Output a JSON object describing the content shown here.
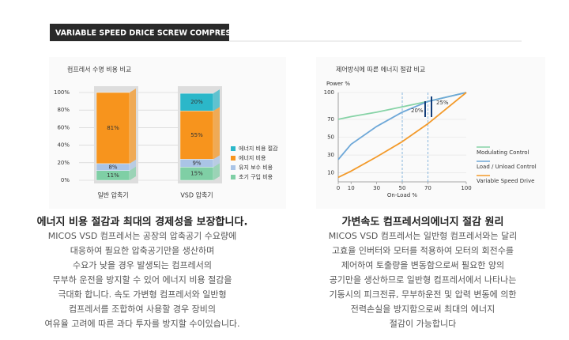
{
  "header": {
    "title": "VARIABLE SPEED DRICE SCREW COMPRESSOR"
  },
  "chart_data": [
    {
      "type": "stacked_bar",
      "title": "컴프레서 수명 비용 비교",
      "categories": [
        "일반 압축기",
        "VSD 압축기"
      ],
      "series": [
        {
          "name": "에너지 비용 절감",
          "color": "#2bb7c9",
          "values": [
            null,
            20
          ],
          "value_labels": [
            null,
            "20%"
          ]
        },
        {
          "name": "에너지 비용",
          "color": "#f7941d",
          "values": [
            81,
            55
          ],
          "value_labels": [
            "81%",
            "55%"
          ]
        },
        {
          "name": "유지 보수 비용",
          "color": "#aac4e6",
          "values": [
            8,
            9
          ],
          "value_labels": [
            "8%",
            "9%"
          ]
        },
        {
          "name": "초기 구입 비용",
          "color": "#7fcfa5",
          "values": [
            11,
            15
          ],
          "value_labels": [
            "11%",
            "15%"
          ]
        }
      ],
      "ylim": [
        0,
        100
      ],
      "yticks": [
        {
          "value": 0,
          "label": "0%"
        },
        {
          "value": 20,
          "label": "20%"
        },
        {
          "value": 40,
          "label": "40%"
        },
        {
          "value": 60,
          "label": "60%"
        },
        {
          "value": 80,
          "label": "80%"
        },
        {
          "value": 100,
          "label": "100%"
        }
      ],
      "grid": true
    },
    {
      "type": "line",
      "title": "제어방식에 따른 에너지 절감 비교",
      "ylabel": "Power %",
      "xlabel": "On-Load %",
      "x": [
        0,
        10,
        30,
        50,
        70,
        100
      ],
      "series": [
        {
          "name": "Modulating Control",
          "color": "#86d3a6",
          "values": [
            70,
            73,
            78,
            84,
            90,
            100
          ]
        },
        {
          "name": "Load / Unload Control",
          "color": "#6ea8d8",
          "values": [
            25,
            42,
            62,
            78,
            90,
            100
          ]
        },
        {
          "name": "Variable Speed Drive",
          "color": "#f39a2a",
          "values": [
            5,
            12,
            28,
            45,
            65,
            100
          ]
        }
      ],
      "xlim": [
        0,
        100
      ],
      "ylim": [
        0,
        100
      ],
      "xticks": [
        0,
        10,
        30,
        50,
        70,
        100
      ],
      "yticks": [
        10,
        30,
        50,
        70,
        100
      ],
      "reference_x": [
        50,
        70
      ],
      "annotations": [
        "20%",
        "25%"
      ],
      "grid": true
    }
  ],
  "left": {
    "heading": "에너지 비용 절감과 최대의 경제성을 보장합니다.",
    "lines": [
      "MICOS VSD 컴프레서는 공장의 압축공기 수요량에",
      "대응하여 필요한 압축공기만을 생산하며",
      "수요가 낮을 경우 발생되는 컴프레서의",
      "무부하 운전을 방지할 수 있어 에너지 비용 절감을",
      "극대화 합니다. 속도 가변형 컴프레서와 일반형",
      "컴프레서를 조합하여 사용할 경우 장비의",
      "여유율 고려에 따른 과다 투자를 방지할 수이있습니다."
    ]
  },
  "right": {
    "heading": "가변속도 컴프레서의에너지 절감 원리",
    "lines": [
      "MICOS VSD 컴프레서는 일반형 컴프레서와는 달리",
      "고효율 인버터와 모터를 적용하여 모터의 회전수를",
      "제어하여 토출량을 변동함으로써 필요한 양의",
      "공기만을 생산하므로 일반형 컴프레서에서 나타나는",
      "기동시의 피크전류, 무부하운전 및 압력 변동에 의한",
      "전력손실을 방지함으로써 최대의 에너지",
      "절감이 가능합니다"
    ]
  }
}
